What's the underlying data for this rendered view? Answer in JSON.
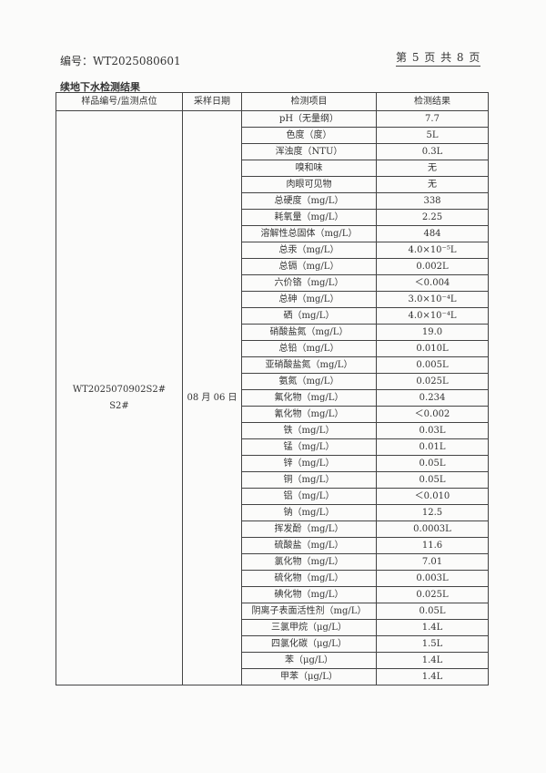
{
  "header": {
    "doc_number": "编号：WT2025080601",
    "page_info": "第 5 页 共 8 页"
  },
  "caption": "续地下水检测结果",
  "table": {
    "columns": [
      "样品编号/监测点位",
      "采样日期",
      "检测项目",
      "检测结果"
    ],
    "sample_id": "WT2025070902S2#",
    "sample_point": "S2#",
    "date": "08 月 06 日",
    "rows": [
      [
        "pH（无量纲）",
        "7.7"
      ],
      [
        "色度（度）",
        "5L"
      ],
      [
        "浑浊度（NTU）",
        "0.3L"
      ],
      [
        "嗅和味",
        "无"
      ],
      [
        "肉眼可见物",
        "无"
      ],
      [
        "总硬度（mg/L）",
        "338"
      ],
      [
        "耗氧量（mg/L）",
        "2.25"
      ],
      [
        "溶解性总固体（mg/L）",
        "484"
      ],
      [
        "总汞（mg/L）",
        "4.0×10⁻⁵L"
      ],
      [
        "总镉（mg/L）",
        "0.002L"
      ],
      [
        "六价铬（mg/L）",
        "＜0.004"
      ],
      [
        "总砷（mg/L）",
        "3.0×10⁻⁴L"
      ],
      [
        "硒（mg/L）",
        "4.0×10⁻⁴L"
      ],
      [
        "硝酸盐氮（mg/L）",
        "19.0"
      ],
      [
        "总铅（mg/L）",
        "0.010L"
      ],
      [
        "亚硝酸盐氮（mg/L）",
        "0.005L"
      ],
      [
        "氨氮（mg/L）",
        "0.025L"
      ],
      [
        "氟化物（mg/L）",
        "0.234"
      ],
      [
        "氰化物（mg/L）",
        "＜0.002"
      ],
      [
        "铁（mg/L）",
        "0.03L"
      ],
      [
        "锰（mg/L）",
        "0.01L"
      ],
      [
        "锌（mg/L）",
        "0.05L"
      ],
      [
        "铜（mg/L）",
        "0.05L"
      ],
      [
        "铝（mg/L）",
        "＜0.010"
      ],
      [
        "钠（mg/L）",
        "12.5"
      ],
      [
        "挥发酚（mg/L）",
        "0.0003L"
      ],
      [
        "硫酸盐（mg/L）",
        "11.6"
      ],
      [
        "氯化物（mg/L）",
        "7.01"
      ],
      [
        "硫化物（mg/L）",
        "0.003L"
      ],
      [
        "碘化物（mg/L）",
        "0.025L"
      ],
      [
        "阴离子表面活性剂（mg/L）",
        "0.05L"
      ],
      [
        "三氯甲烷（μg/L）",
        "1.4L"
      ],
      [
        "四氯化碳（μg/L）",
        "1.5L"
      ],
      [
        "苯（μg/L）",
        "1.4L"
      ],
      [
        "甲苯（μg/L）",
        "1.4L"
      ]
    ]
  }
}
